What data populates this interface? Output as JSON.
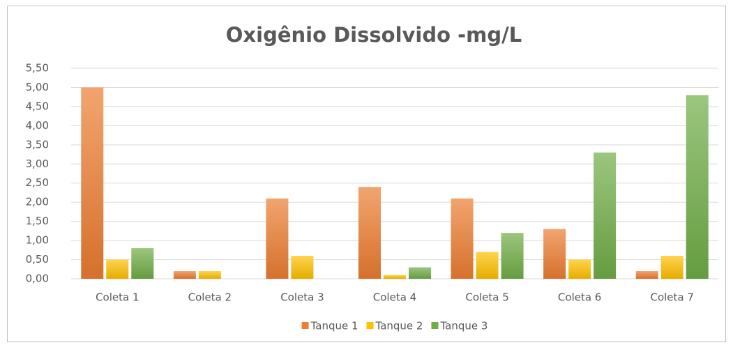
{
  "chart_data": {
    "type": "bar",
    "title": "Oxigênio Dissolvido -mg/L",
    "categories": [
      "Coleta 1",
      "Coleta 2",
      "Coleta 3",
      "Coleta 4",
      "Coleta 5",
      "Coleta 6",
      "Coleta 7"
    ],
    "series": [
      {
        "name": "Tanque 1",
        "color": "#ed7d31",
        "values": [
          5.0,
          0.2,
          2.1,
          2.4,
          2.1,
          1.3,
          0.2
        ]
      },
      {
        "name": "Tanque 2",
        "color": "#ffc000",
        "values": [
          0.5,
          0.2,
          0.6,
          0.1,
          0.7,
          0.5,
          0.6
        ]
      },
      {
        "name": "Tanque 3",
        "color": "#70ad47",
        "values": [
          0.8,
          0,
          0,
          0.3,
          1.2,
          3.3,
          4.8
        ]
      }
    ],
    "ylim": [
      0,
      5.5
    ],
    "yticks": [
      {
        "value": 0,
        "label": "0,00"
      },
      {
        "value": 0.5,
        "label": "0,50"
      },
      {
        "value": 1,
        "label": "1,00"
      },
      {
        "value": 1.5,
        "label": "1,50"
      },
      {
        "value": 2,
        "label": "2,00"
      },
      {
        "value": 2.5,
        "label": "2,50"
      },
      {
        "value": 3,
        "label": "3,00"
      },
      {
        "value": 3.5,
        "label": "3,50"
      },
      {
        "value": 4,
        "label": "4,00"
      },
      {
        "value": 4.5,
        "label": "4,50"
      },
      {
        "value": 5,
        "label": "5,00"
      },
      {
        "value": 5.5,
        "label": "5,50"
      }
    ],
    "grid": true,
    "legend": "bottom"
  }
}
